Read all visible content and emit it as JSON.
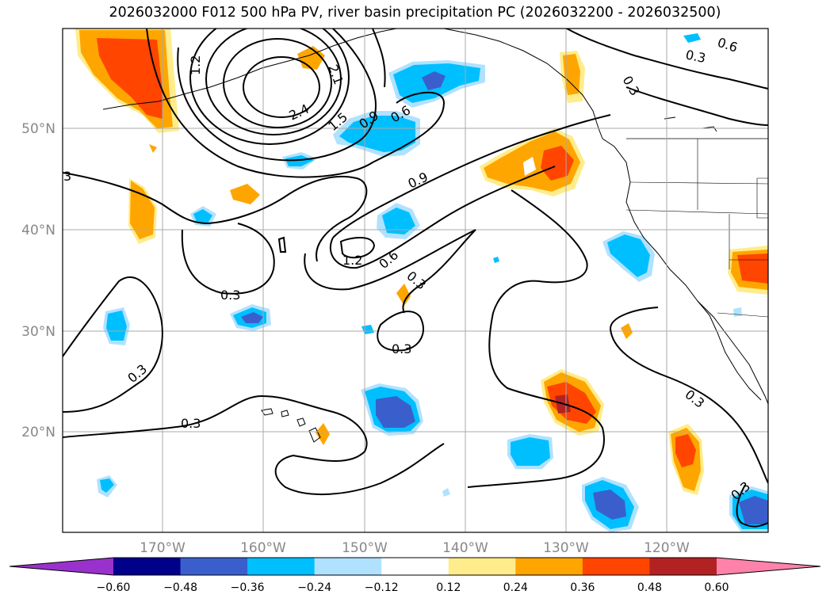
{
  "title": "2026032000 F012 500 hPa PV, river basin precipitation PC (2026032200 - 2026032500)",
  "lat_labels": [
    "50°N",
    "40°N",
    "30°N",
    "20°N"
  ],
  "lon_labels": [
    "170°W",
    "160°W",
    "150°W",
    "140°W",
    "130°W",
    "120°W"
  ],
  "colorbar": {
    "colors": [
      "#9932cc",
      "#00008b",
      "#3a5fcd",
      "#00bfff",
      "#b0e2ff",
      "#ffffff",
      "#ffec8b",
      "#ffa500",
      "#ff4500",
      "#b22222",
      "#ff82ab"
    ],
    "ticks": [
      "−0.60",
      "−0.48",
      "−0.36",
      "−0.24",
      "−0.12",
      "0.12",
      "0.24",
      "0.36",
      "0.48",
      "0.60"
    ]
  },
  "contour_labels": [
    "1.2",
    "2.1",
    "2.4",
    "1.5",
    "0.9",
    "0.6",
    "0.6",
    "0.3",
    "0.3",
    "3",
    "0.9",
    "1.2",
    "0.6",
    "0.3",
    "0.3",
    "0.3",
    "0.3",
    "0.3",
    "0.3",
    "0.3"
  ]
}
